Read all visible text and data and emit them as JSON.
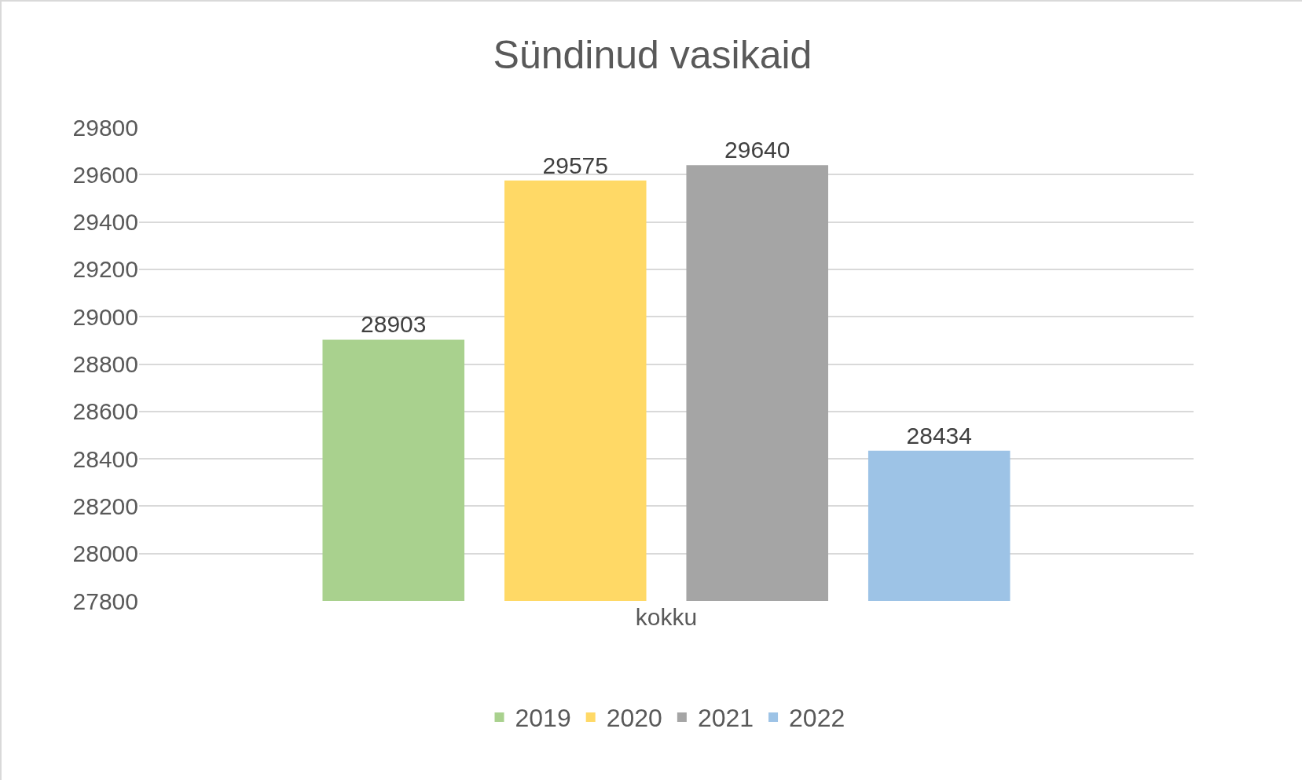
{
  "chart_data": {
    "type": "bar",
    "title": "Sündinud vasikaid",
    "categories": [
      "kokku"
    ],
    "series": [
      {
        "name": "2019",
        "color": "#a9d18e",
        "values": [
          28903
        ]
      },
      {
        "name": "2020",
        "color": "#ffd966",
        "values": [
          29575
        ]
      },
      {
        "name": "2021",
        "color": "#a5a5a5",
        "values": [
          29640
        ]
      },
      {
        "name": "2022",
        "color": "#9dc3e6",
        "values": [
          28434
        ]
      }
    ],
    "ylim": [
      27800,
      29800
    ],
    "yticks": [
      27800,
      28000,
      28200,
      28400,
      28600,
      28800,
      29000,
      29200,
      29400,
      29600,
      29800
    ],
    "grid": "y",
    "legend": "bottom",
    "data_labels": true
  }
}
